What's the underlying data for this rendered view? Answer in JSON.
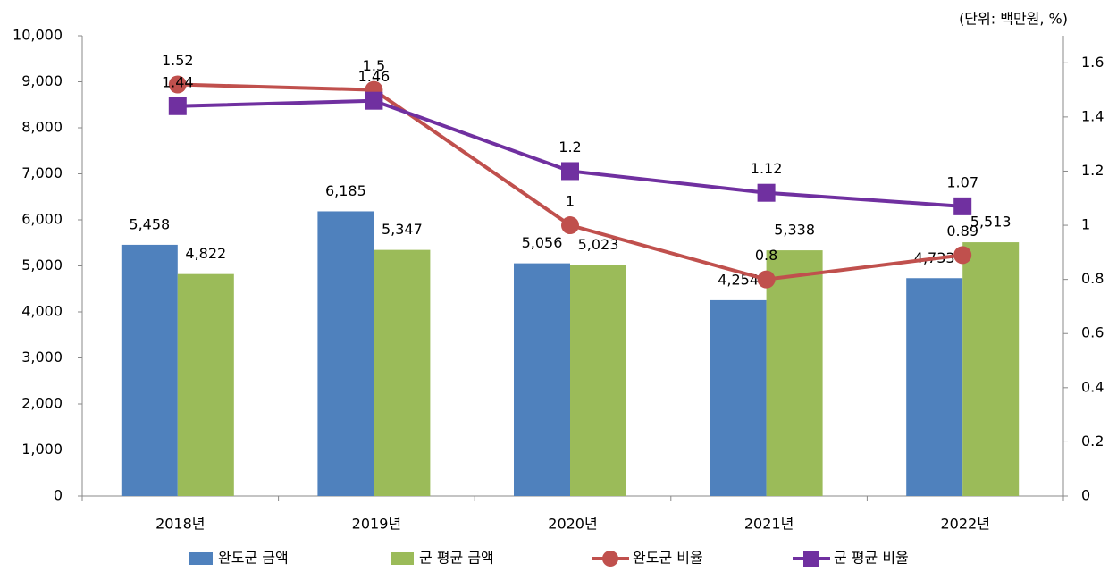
{
  "chart_data": {
    "type": "combo",
    "unit_note": "(단위: 백만원, %)",
    "categories": [
      "2018년",
      "2019년",
      "2020년",
      "2021년",
      "2022년"
    ],
    "series": [
      {
        "name": "완도군 금액",
        "type": "bar",
        "color": "#4f81bd",
        "values": [
          5458,
          6185,
          5056,
          4254,
          4733
        ],
        "value_labels": [
          "5,458",
          "6,185",
          "5,056",
          "4,254",
          "4,733"
        ]
      },
      {
        "name": "군 평균 금액",
        "type": "bar",
        "color": "#9bbb59",
        "values": [
          4822,
          5347,
          5023,
          5338,
          5513
        ],
        "value_labels": [
          "4,822",
          "5,347",
          "5,023",
          "5,338",
          "5,513"
        ]
      },
      {
        "name": "완도군 비율",
        "type": "line",
        "marker": "circle",
        "axis": "y2",
        "color": "#c0504d",
        "values": [
          1.52,
          1.5,
          1,
          0.8,
          0.89
        ]
      },
      {
        "name": "군 평균 비율",
        "type": "line",
        "marker": "square",
        "axis": "y2",
        "color": "#7030a0",
        "values": [
          1.44,
          1.46,
          1.2,
          1.12,
          1.07
        ]
      }
    ],
    "ylim": [
      0,
      10000
    ],
    "yticks": [
      0,
      {
        "value": 1000,
        "label": "1,000"
      },
      {
        "value": 2000,
        "label": "2,000"
      },
      {
        "value": 3000,
        "label": "3,000"
      },
      {
        "value": 4000,
        "label": "4,000"
      },
      {
        "value": 5000,
        "label": "5,000"
      },
      {
        "value": 6000,
        "label": "6,000"
      },
      {
        "value": 7000,
        "label": "7,000"
      },
      {
        "value": 8000,
        "label": "8,000"
      },
      {
        "value": 9000,
        "label": "9,000"
      },
      {
        "value": 10000,
        "label": "10,000"
      }
    ],
    "y2lim": [
      0,
      1.7
    ],
    "y2ticks": [
      0,
      0.2,
      0.4,
      0.6,
      0.8,
      1,
      1.2,
      1.4,
      1.6
    ],
    "grid": false
  }
}
